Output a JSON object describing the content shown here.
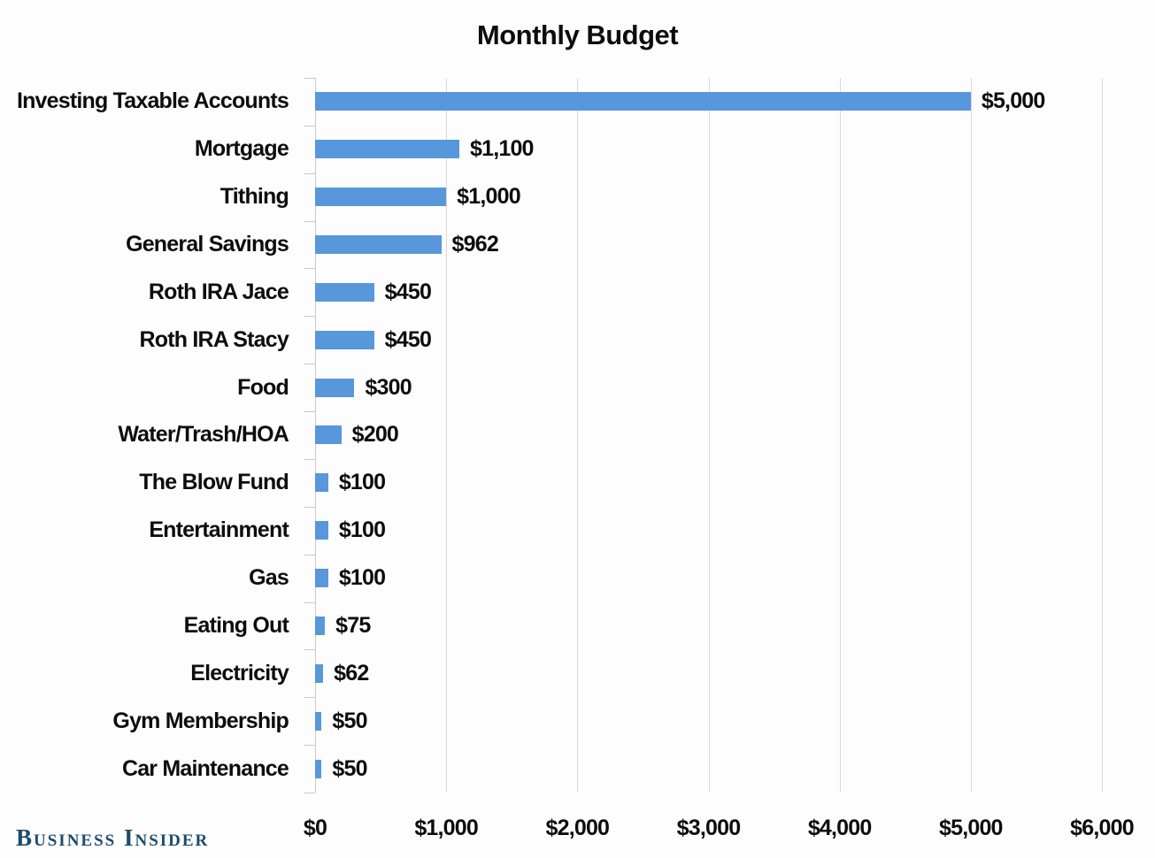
{
  "title": "Monthly Budget",
  "brand": "Business Insider",
  "colors": {
    "bar": "#5897db",
    "gridline": "#dadada",
    "axis": "#c9c9c9",
    "text": "#0d0d0d",
    "brand_navy": "#1d4b6c",
    "background": "#fdfdfd"
  },
  "chart_data": {
    "type": "bar",
    "orientation": "horizontal",
    "title": "Monthly Budget",
    "categories": [
      "Investing Taxable Accounts",
      "Mortgage",
      "Tithing",
      "General Savings",
      "Roth IRA Jace",
      "Roth IRA Stacy",
      "Food",
      "Water/Trash/HOA",
      "The Blow Fund",
      "Entertainment",
      "Gas",
      "Eating Out",
      "Electricity",
      "Gym Membership",
      "Car Maintenance"
    ],
    "values": [
      5000,
      1100,
      1000,
      962,
      450,
      450,
      300,
      200,
      100,
      100,
      100,
      75,
      62,
      50,
      50
    ],
    "value_labels": [
      "$5,000",
      "$1,100",
      "$1,000",
      "$962",
      "$450",
      "$450",
      "$300",
      "$200",
      "$100",
      "$100",
      "$100",
      "$75",
      "$62",
      "$50",
      "$50"
    ],
    "xlabel": "",
    "ylabel": "",
    "xlim": [
      0,
      6000
    ],
    "x_ticks": [
      0,
      1000,
      2000,
      3000,
      4000,
      5000,
      6000
    ],
    "x_tick_labels": [
      "$0",
      "$1,000",
      "$2,000",
      "$3,000",
      "$4,000",
      "$5,000",
      "$6,000"
    ],
    "grid": true,
    "legend": false,
    "bar_color": "#5897db"
  }
}
